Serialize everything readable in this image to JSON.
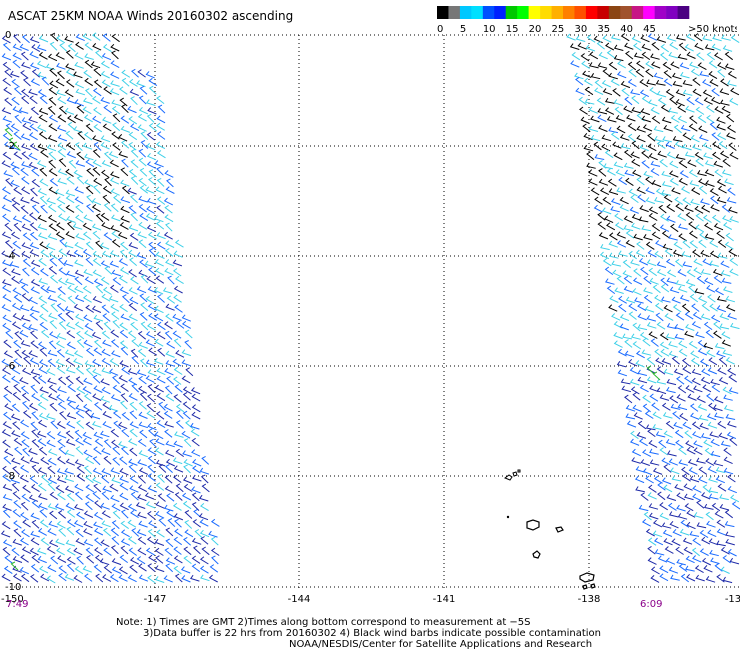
{
  "title": "ASCAT 25KM NOAA Winds 20160302 ascending",
  "legend": {
    "units": ">50 knots",
    "bins": [
      {
        "label": "0",
        "colors": [
          "#000000",
          "#777777"
        ]
      },
      {
        "label": "5",
        "colors": [
          "#00c8ff",
          "#00e0ff"
        ]
      },
      {
        "label": "10",
        "colors": [
          "#0050ff",
          "#0020ff"
        ]
      },
      {
        "label": "15",
        "colors": [
          "#00c800",
          "#00ff00"
        ]
      },
      {
        "label": "20",
        "colors": [
          "#ffff00",
          "#ffdc00"
        ]
      },
      {
        "label": "25",
        "colors": [
          "#ffb000",
          "#ff8000"
        ]
      },
      {
        "label": "30",
        "colors": [
          "#ff5000",
          "#ff0000"
        ]
      },
      {
        "label": "35",
        "colors": [
          "#c80000",
          "#8b4513"
        ]
      },
      {
        "label": "40",
        "colors": [
          "#a0522d",
          "#c71585"
        ]
      },
      {
        "label": "45",
        "colors": [
          "#ff00ff",
          "#a000c8"
        ]
      },
      {
        "label": "",
        "colors": [
          "#8000c0",
          "#4b0082"
        ]
      }
    ]
  },
  "axes": {
    "x_ticks": [
      "-150",
      "-147",
      "-144",
      "-141",
      "-138",
      "-13"
    ],
    "y_ticks": [
      "0",
      "-2",
      "-4",
      "-6",
      "-8",
      "-10"
    ]
  },
  "times": {
    "left": "7:49",
    "right": "6:09"
  },
  "notes": [
    "Note: 1) Times are GMT 2)Times along bottom correspond to measurement at −5S",
    "3)Data buffer is 22 hrs from 20160302 4) Black wind barbs indicate possible contamination",
    "NOAA/NESDIS/Center for Satellite Applications and Research"
  ],
  "swaths": [
    {
      "name": "west",
      "region_colors": [
        "#3fd0e8",
        "#1a6bff",
        "#1e2aa8",
        "#000000"
      ]
    },
    {
      "name": "east",
      "region_colors": [
        "#3fd0e8",
        "#1a6bff",
        "#1e2aa8",
        "#000000"
      ]
    }
  ],
  "colors": {
    "grid": "#000000",
    "time_label": "#8a008a",
    "land": "#000000",
    "rain_flag": "#2fb82f"
  }
}
